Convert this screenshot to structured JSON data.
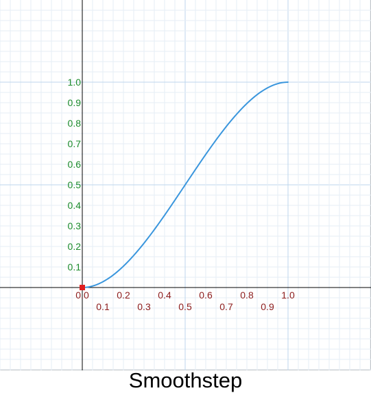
{
  "chart_data": {
    "type": "line",
    "title": "Smoothstep",
    "xlabel": "",
    "ylabel": "",
    "xlim": [
      -0.4,
      1.4
    ],
    "ylim": [
      -0.4,
      1.4
    ],
    "grid": true,
    "x_ticks_upper": [
      "0.0",
      "0.2",
      "0.4",
      "0.6",
      "0.8",
      "1.0"
    ],
    "x_ticks_lower": [
      "0.1",
      "0.3",
      "0.5",
      "0.7",
      "0.9"
    ],
    "y_ticks": [
      "0.1",
      "0.2",
      "0.3",
      "0.4",
      "0.5",
      "0.6",
      "0.7",
      "0.8",
      "0.9",
      "1.0"
    ],
    "series": [
      {
        "color": "#3a96dd",
        "x": [
          0.0,
          0.1,
          0.2,
          0.3,
          0.4,
          0.5,
          0.6,
          0.7,
          0.8,
          0.9,
          1.0
        ],
        "y": [
          0.0,
          0.028,
          0.104,
          0.216,
          0.352,
          0.5,
          0.648,
          0.784,
          0.896,
          0.972,
          1.0
        ]
      }
    ],
    "marker": {
      "x": 0.0,
      "y": 0.0,
      "color": "#e02020"
    },
    "colors": {
      "axis": "#000000",
      "grid_minor": "#e6eef6",
      "grid_major": "#bcd6ec",
      "tick_x": "#8b1a1a",
      "tick_y": "#1a8a2a"
    }
  }
}
